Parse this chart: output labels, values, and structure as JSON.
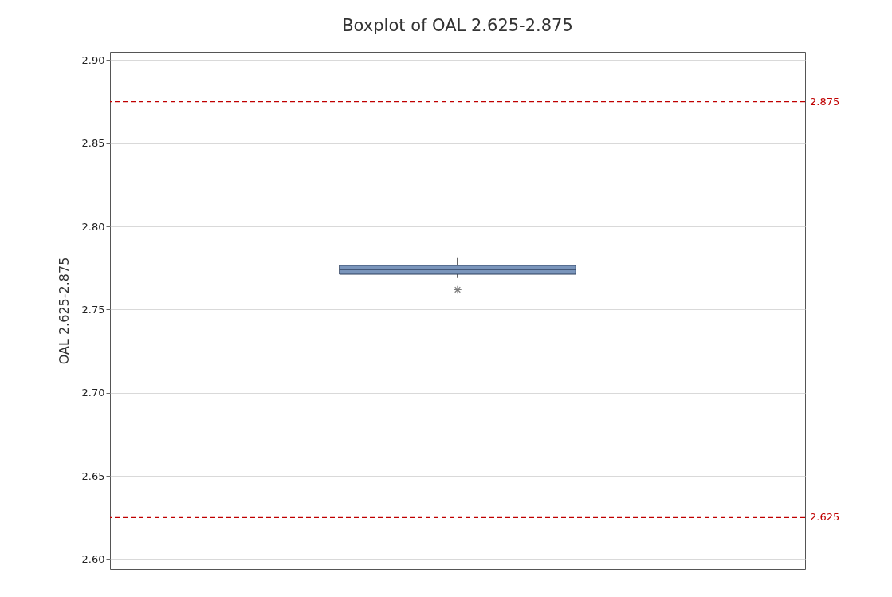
{
  "chart_data": {
    "type": "box",
    "title": "Boxplot of OAL 2.625-2.875",
    "ylabel": "OAL 2.625-2.875",
    "categories": [
      null
    ],
    "series": [
      {
        "color": "#7a95bb",
        "boxes": [
          {
            "low": 2.769,
            "q1": 2.7713,
            "median": 2.774,
            "q3": 2.7766,
            "high": 2.781,
            "outliers": [
              2.762
            ]
          }
        ]
      }
    ],
    "ylim": [
      2.594,
      2.905
    ],
    "yticks": [
      {
        "value": 2.6,
        "label": "2.60"
      },
      2.65,
      {
        "value": 2.7,
        "label": "2.70"
      },
      2.75,
      {
        "value": 2.8,
        "label": "2.80"
      },
      2.85,
      {
        "value": 2.9,
        "label": "2.90"
      }
    ],
    "ref_lines": [
      {
        "axis": "y",
        "value": 2.875,
        "label": "2.875",
        "color": "#c00000",
        "line_style": "dashed"
      },
      {
        "axis": "y",
        "value": 2.625,
        "label": "2.625",
        "color": "#c00000",
        "line_style": "dashed"
      }
    ],
    "grid": true,
    "tick_labels": "y"
  }
}
